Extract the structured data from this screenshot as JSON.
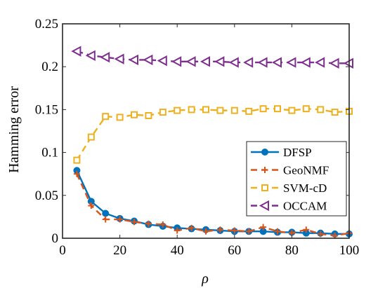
{
  "chart_data": {
    "type": "line",
    "xlabel": "ρ",
    "ylabel": "Hamming error",
    "xlim": [
      0,
      100
    ],
    "ylim": [
      0,
      0.25
    ],
    "xticks": [
      0,
      20,
      40,
      60,
      80,
      100
    ],
    "yticks": [
      0,
      0.05,
      0.1,
      0.15,
      0.2,
      0.25
    ],
    "xtick_labels": [
      "0",
      "20",
      "40",
      "60",
      "80",
      "100"
    ],
    "ytick_labels": [
      "0",
      "0.05",
      "0.1",
      "0.15",
      "0.2",
      "0.25"
    ],
    "grid": false,
    "legend_position": "lower-right",
    "x": [
      5,
      10,
      15,
      20,
      25,
      30,
      35,
      40,
      45,
      50,
      55,
      60,
      65,
      70,
      75,
      80,
      85,
      90,
      95,
      100
    ],
    "series": [
      {
        "name": "DFSP",
        "color": "#0072BD",
        "line": "solid",
        "marker": "circle",
        "values": [
          0.079,
          0.043,
          0.029,
          0.023,
          0.02,
          0.016,
          0.014,
          0.012,
          0.011,
          0.01,
          0.009,
          0.008,
          0.008,
          0.008,
          0.007,
          0.007,
          0.006,
          0.006,
          0.005,
          0.005
        ]
      },
      {
        "name": "GeoNMF",
        "color": "#D95319",
        "line": "dashed",
        "marker": "plus",
        "values": [
          0.075,
          0.038,
          0.022,
          0.022,
          0.019,
          0.017,
          0.016,
          0.009,
          0.012,
          0.008,
          0.01,
          0.009,
          0.008,
          0.013,
          0.008,
          0.006,
          0.01,
          0.005,
          0.003,
          0.006
        ]
      },
      {
        "name": "SVM-cD",
        "color": "#EDB120",
        "line": "dashed",
        "marker": "square",
        "values": [
          0.091,
          0.118,
          0.142,
          0.141,
          0.144,
          0.143,
          0.147,
          0.149,
          0.15,
          0.15,
          0.149,
          0.149,
          0.148,
          0.151,
          0.151,
          0.149,
          0.151,
          0.15,
          0.147,
          0.148
        ]
      },
      {
        "name": "OCCAM",
        "color": "#7E2F8E",
        "line": "dashed",
        "marker": "triangle-left",
        "values": [
          0.218,
          0.213,
          0.211,
          0.209,
          0.208,
          0.208,
          0.207,
          0.206,
          0.206,
          0.206,
          0.206,
          0.205,
          0.205,
          0.205,
          0.205,
          0.205,
          0.205,
          0.205,
          0.204,
          0.204
        ]
      }
    ]
  }
}
